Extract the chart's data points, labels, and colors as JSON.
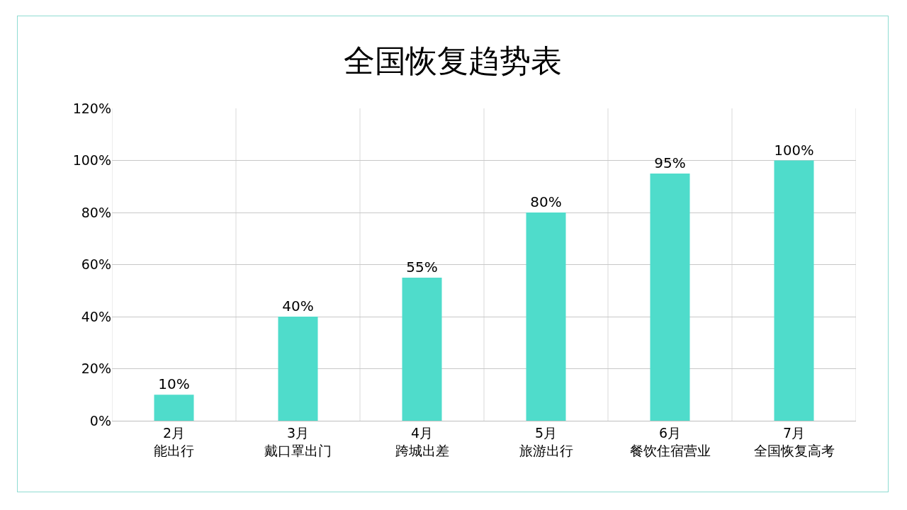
{
  "chart_data": {
    "type": "bar",
    "title": "全国恢复趋势表",
    "categories": [
      "2月能出行",
      "3月戴口罩出门",
      "4月跨城出差",
      "5月旅游出行",
      "6月餐饮住宿营业",
      "7月全国恢复高考"
    ],
    "values": [
      10,
      40,
      55,
      80,
      95,
      100
    ],
    "value_labels": [
      "10%",
      "40%",
      "55%",
      "80%",
      "95%",
      "100%"
    ],
    "color": "#4fdccb",
    "ylim": [
      0,
      120
    ],
    "yticks": [
      {
        "value": 0,
        "label": "0%"
      },
      {
        "value": 20,
        "label": "20%"
      },
      {
        "value": 40,
        "label": "40%"
      },
      {
        "value": 60,
        "label": "60%"
      },
      {
        "value": 80,
        "label": "80%"
      },
      {
        "value": 100,
        "label": "100%"
      },
      {
        "value": 120,
        "label": "120%"
      }
    ],
    "grid": true
  }
}
